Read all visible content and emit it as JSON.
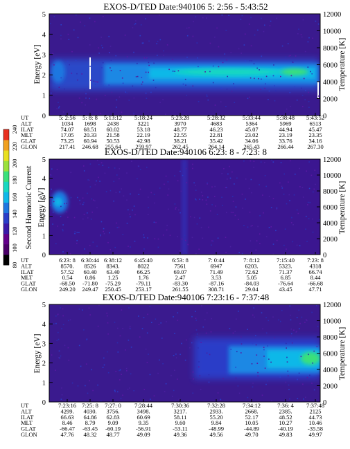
{
  "colorbar": {
    "label": "Second Harmonic Current",
    "ticks": [
      "80",
      "100",
      "120",
      "140",
      "160",
      "180",
      "200",
      "220",
      "240"
    ],
    "colors": [
      "#000000",
      "#4a0068",
      "#62008a",
      "#3a1aa8",
      "#2a3ec8",
      "#1f77e0",
      "#10b8e8",
      "#18d8c0",
      "#3ae07a",
      "#9ae03a",
      "#e8e020",
      "#f0a020",
      "#e83020"
    ]
  },
  "row_labels": [
    "UT",
    "ALT",
    "ILAT",
    "MLT",
    "GLAT",
    "GLON"
  ],
  "chart_data": [
    {
      "type": "heatmap",
      "title": "EXOS-D/TED   Date:940106  5: 2:56 - 5:43:52",
      "ylabel": "Energy [eV]",
      "ylabel_right": "Temperature [K]",
      "ylim": [
        0,
        5
      ],
      "ylim_right": [
        0,
        12000
      ],
      "yticks": [
        "0",
        "1",
        "2",
        "3",
        "4",
        "5"
      ],
      "yticks_right": [
        "0",
        "2000",
        "4000",
        "6000",
        "8000",
        "10000",
        "12000"
      ],
      "orbit_table": {
        "UT": [
          "5: 2:56",
          "5: 8: 8",
          "5:13:12",
          "5:18:24",
          "5:23:28",
          "5:28:32",
          "5:33:44",
          "5:38:48",
          "5:43:52"
        ],
        "ALT": [
          "1034",
          "1698",
          "2438",
          "3221",
          "3970",
          "4683",
          "5364",
          "5969",
          "6513"
        ],
        "ILAT": [
          "74.07",
          "68.51",
          "60.02",
          "53.18",
          "48.77",
          "46.23",
          "45.07",
          "44.94",
          "45.47"
        ],
        "MLT": [
          "17.05",
          "20.33",
          "21.58",
          "22.19",
          "22.55",
          "22.81",
          "23.02",
          "23.19",
          "23.35"
        ],
        "GLAT": [
          "73.25",
          "60.94",
          "50.53",
          "42.98",
          "38.21",
          "35.42",
          "34.06",
          "33.76",
          "34.16"
        ],
        "GLON": [
          "217.41",
          "246.68",
          "255.64",
          "259.97",
          "262.45",
          "264.14",
          "265.43",
          "266.44",
          "267.30"
        ]
      }
    },
    {
      "type": "heatmap",
      "title": "EXOS-D/TED   Date:940106  6:23: 8 - 7:23: 8",
      "ylabel": "Energy [eV]",
      "ylabel_right": "Temperature [K]",
      "ylim": [
        0,
        5
      ],
      "ylim_right": [
        0,
        12000
      ],
      "yticks": [
        "0",
        "1",
        "2",
        "3",
        "4",
        "5"
      ],
      "yticks_right": [
        "0",
        "2000",
        "4000",
        "6000",
        "8000",
        "10000",
        "12000"
      ],
      "orbit_table": {
        "UT": [
          "6:23: 8",
          "6:30:44",
          "6:38:12",
          "6:45:40",
          "6:53: 8",
          "7: 0:44",
          "7: 8:12",
          "7:15:40",
          "7:23: 8"
        ],
        "ALT": [
          "8570.",
          "8526",
          "8343.",
          "8022",
          "7561",
          "6947",
          "6203.",
          "5323.",
          "4318"
        ],
        "ILAT": [
          "57.52",
          "60.40",
          "63.40",
          "66.25",
          "69.07",
          "71.49",
          "72.62",
          "71.37",
          "66.74"
        ],
        "MLT": [
          "0.54",
          "0.86",
          "1.25",
          "1.76",
          "2.47",
          "3.53",
          "5.05",
          "6.85",
          "8.44"
        ],
        "GLAT": [
          "-68.50",
          "-71.80",
          "-75.29",
          "-79.11",
          "-83.30",
          "-87.16",
          "-84.03",
          "-76.64",
          "-66.68"
        ],
        "GLON": [
          "249.20",
          "249.47",
          "250.45",
          "253.17",
          "261.55",
          "308.71",
          "29.04",
          "43.45",
          "47.71"
        ]
      }
    },
    {
      "type": "heatmap",
      "title": "EXOS-D/TED   Date:940106  7:23:16 - 7:37:48",
      "ylabel": "Energy [eV]",
      "ylabel_right": "Temperature [K]",
      "ylim": [
        0,
        5
      ],
      "ylim_right": [
        0,
        12000
      ],
      "yticks": [
        "0",
        "1",
        "2",
        "3",
        "4",
        "5"
      ],
      "yticks_right": [
        "0",
        "2000",
        "4000",
        "6000",
        "8000",
        "10000",
        "12000"
      ],
      "orbit_table": {
        "UT": [
          "7:23:16",
          "7:25: 8",
          "7:27: 0",
          "7:28:44",
          "7:30:36",
          "7:32:28",
          "7:34:12",
          "7:36: 4",
          "7:37:48"
        ],
        "ALT": [
          "4299.",
          "4030.",
          "3756.",
          "3498.",
          "3217.",
          "2933.",
          "2668.",
          "2385.",
          "2125"
        ],
        "ILAT": [
          "66.63",
          "64.86",
          "62.83",
          "60.69",
          "58.11",
          "55.20",
          "52.17",
          "48.52",
          "44.73"
        ],
        "MLT": [
          "8.46",
          "8.79",
          "9.09",
          "9.35",
          "9.60",
          "9.84",
          "10.05",
          "10.27",
          "10.46"
        ],
        "GLAT": [
          "-66.47",
          "-63.45",
          "-60.19",
          "-56.91",
          "-53.11",
          "-48.99",
          "-44.89",
          "-40.19",
          "-35.58"
        ],
        "GLON": [
          "47.76",
          "48.32",
          "48.77",
          "49.09",
          "49.36",
          "49.56",
          "49.70",
          "49.83",
          "49.97"
        ]
      }
    }
  ]
}
